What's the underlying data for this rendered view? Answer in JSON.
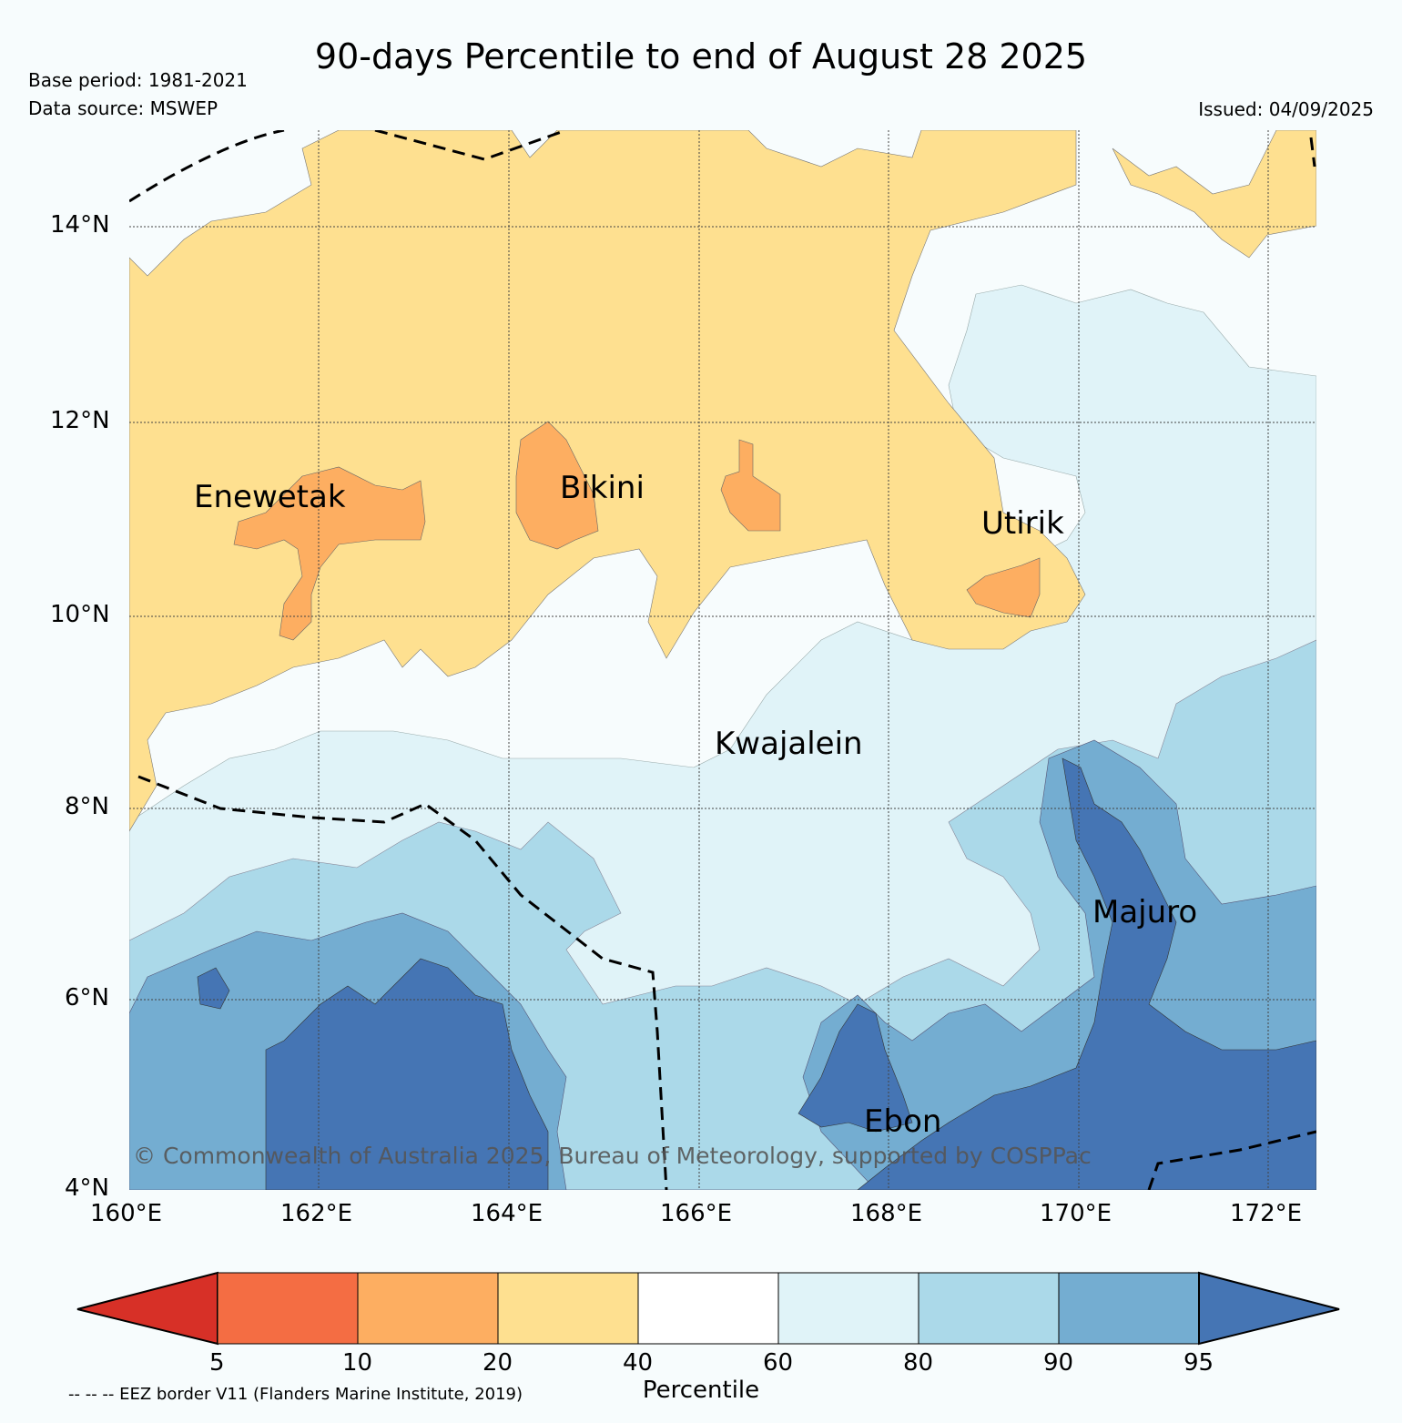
{
  "title": "90-days Percentile to end of August 28 2025",
  "base_period": "Base period: 1981-2021",
  "data_source": "Data source: MSWEP",
  "issued": "Issued: 04/09/2025",
  "copyright": "© Commonwealth of Australia 2025, Bureau of Meteorology, supported by COSPPac",
  "footnote": "-- -- -- EEZ border V11 (Flanders Marine Institute, 2019)",
  "lon_ticks": [
    "160°E",
    "162°E",
    "164°E",
    "166°E",
    "168°E",
    "170°E",
    "172°E"
  ],
  "lat_ticks": [
    "14°N",
    "12°N",
    "10°N",
    "8°N",
    "6°N",
    "4°N"
  ],
  "places": [
    {
      "name": "Enewetak",
      "lon": 162.3,
      "lat": 11.2
    },
    {
      "name": "Bikini",
      "lon": 165.5,
      "lat": 11.3
    },
    {
      "name": "Utirik",
      "lon": 169.8,
      "lat": 10.9
    },
    {
      "name": "Kwajalein",
      "lon": 167.4,
      "lat": 8.6
    },
    {
      "name": "Majuro",
      "lon": 171.2,
      "lat": 6.9
    },
    {
      "name": "Ebon",
      "lon": 168.6,
      "lat": 4.7
    }
  ],
  "colorbar": {
    "label": "Percentile",
    "tick_labels": [
      "5",
      "10",
      "20",
      "40",
      "60",
      "80",
      "90",
      "95"
    ],
    "colors": [
      "#d73027",
      "#f46d43",
      "#fdae61",
      "#fee090",
      "#ffffff",
      "#e0f3f8",
      "#abd9e9",
      "#74add1",
      "#4575b4"
    ]
  },
  "chart_data": {
    "type": "map",
    "region": {
      "lon_range": [
        160,
        172.5
      ],
      "lat_range": [
        4,
        15
      ]
    },
    "levels": [
      5,
      10,
      20,
      40,
      60,
      80,
      90,
      95
    ],
    "zones": [
      {
        "area": "north (11–15°N)",
        "class": "20–40"
      },
      {
        "area": "Enewetak / Bikini / Utirik cores",
        "class": "10–20"
      },
      {
        "area": "central (8–10°N)",
        "class": "40–60"
      },
      {
        "area": "east of 169°E, 8–13°N",
        "class": "60–80"
      },
      {
        "area": "south (4–7°N)",
        "class": "80–95"
      },
      {
        "area": "southwest, southeast corners and Majuro",
        "class": ">95"
      }
    ]
  }
}
